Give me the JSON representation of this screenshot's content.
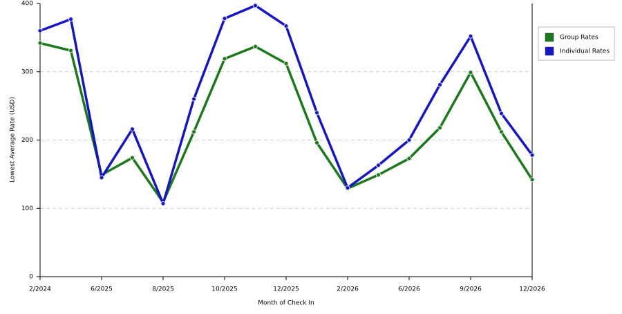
{
  "chart_data": {
    "type": "line",
    "x_label": "Month of Check In",
    "y_label": "Lowest Average Rate (USD)",
    "categories": [
      "2/2024",
      null,
      "6/2025",
      null,
      "8/2025",
      null,
      "10/2025",
      null,
      "12/2025",
      null,
      "2/2026",
      null,
      "6/2026",
      null,
      "9/2026",
      null,
      "12/2026"
    ],
    "series": [
      {
        "name": "Group Rates",
        "color": "#1a7a1a",
        "values": [
          342,
          331,
          149,
          174,
          109,
          212,
          319,
          337,
          312,
          196,
          129,
          149,
          173,
          218,
          299,
          212,
          142
        ]
      },
      {
        "name": "Individual Rates",
        "color": "#1414c8",
        "values": [
          360,
          377,
          145,
          216,
          107,
          260,
          378,
          397,
          367,
          240,
          130,
          163,
          200,
          281,
          352,
          239,
          178
        ]
      }
    ],
    "ylim": [
      0,
      400
    ],
    "yticks": [
      0,
      100,
      200,
      300,
      400
    ],
    "grid": true,
    "legend": "right"
  }
}
